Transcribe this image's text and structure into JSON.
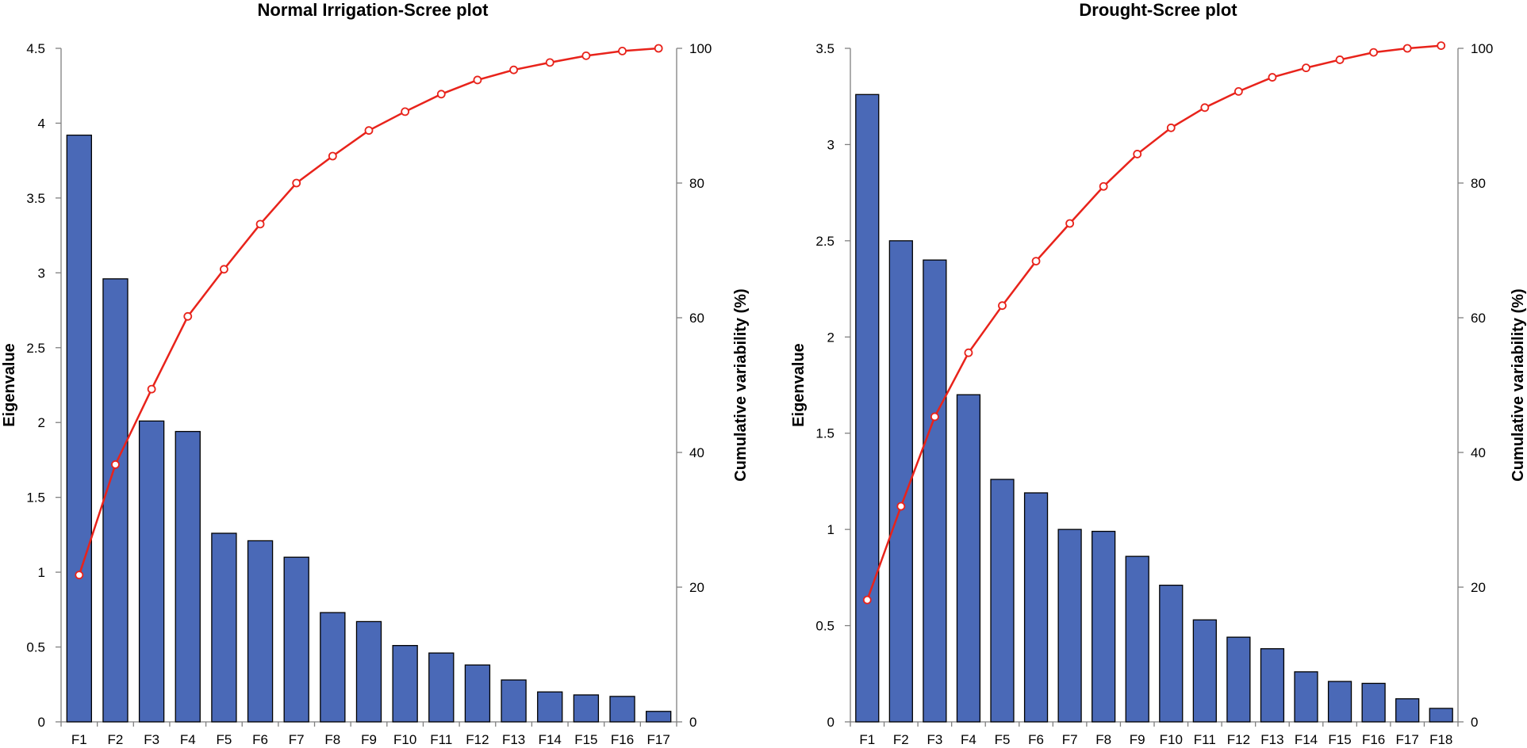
{
  "colors": {
    "bar": "#4A69B7",
    "line": "#E8231B",
    "axis": "#808080"
  },
  "chart_data": [
    {
      "type": "bar",
      "title": "Normal Irrigation-Scree plot",
      "xlabel": "",
      "ylabel": "Eigenvalue",
      "y2label": "Cumulative variability (%)",
      "ylim": [
        0,
        4.5
      ],
      "y2lim": [
        0,
        100
      ],
      "yticks": [
        "0",
        "0.5",
        "1",
        "1.5",
        "2",
        "2.5",
        "3",
        "3.5",
        "4",
        "4.5"
      ],
      "y2ticks": [
        "0",
        "20",
        "40",
        "60",
        "80",
        "100"
      ],
      "categories": [
        "F1",
        "F2",
        "F3",
        "F4",
        "F5",
        "F6",
        "F7",
        "F8",
        "F9",
        "F10",
        "F11",
        "F12",
        "F13",
        "F14",
        "F15",
        "F16",
        "F17"
      ],
      "series": [
        {
          "name": "Eigenvalue",
          "type": "bar",
          "values": [
            3.92,
            2.96,
            2.01,
            1.94,
            1.26,
            1.21,
            1.1,
            0.73,
            0.67,
            0.51,
            0.46,
            0.38,
            0.28,
            0.2,
            0.18,
            0.17,
            0.07
          ]
        },
        {
          "name": "Cumulative variability (%)",
          "type": "line",
          "axis": "right",
          "values": [
            21.8,
            38.2,
            49.4,
            60.2,
            67.2,
            73.9,
            80.0,
            84.0,
            87.8,
            90.6,
            93.2,
            95.3,
            96.8,
            97.9,
            98.9,
            99.6,
            100
          ]
        }
      ]
    },
    {
      "type": "bar",
      "title": "Drought-Scree plot",
      "xlabel": "",
      "ylabel": "Eigenvalue",
      "y2label": "Cumulative variability (%)",
      "ylim": [
        0,
        3.5
      ],
      "y2lim": [
        0,
        100
      ],
      "yticks": [
        "0",
        "0.5",
        "1",
        "1.5",
        "2",
        "2.5",
        "3",
        "3.5"
      ],
      "y2ticks": [
        "0",
        "20",
        "40",
        "60",
        "80",
        "100"
      ],
      "categories": [
        "F1",
        "F2",
        "F3",
        "F4",
        "F5",
        "F6",
        "F7",
        "F8",
        "F9",
        "F10",
        "F11",
        "F12",
        "F13",
        "F14",
        "F15",
        "F16",
        "F17",
        "F18"
      ],
      "series": [
        {
          "name": "Eigenvalue",
          "type": "bar",
          "values": [
            3.26,
            2.5,
            2.4,
            1.7,
            1.26,
            1.19,
            1.0,
            0.99,
            0.86,
            0.71,
            0.53,
            0.44,
            0.38,
            0.26,
            0.21,
            0.2,
            0.12,
            0.07
          ]
        },
        {
          "name": "Cumulative variability (%)",
          "type": "line",
          "axis": "right",
          "values": [
            18.1,
            32.0,
            45.3,
            54.8,
            61.8,
            68.4,
            74.0,
            79.5,
            84.3,
            88.2,
            91.2,
            93.6,
            95.7,
            97.1,
            98.3,
            99.4,
            100,
            100.4
          ]
        }
      ]
    }
  ]
}
